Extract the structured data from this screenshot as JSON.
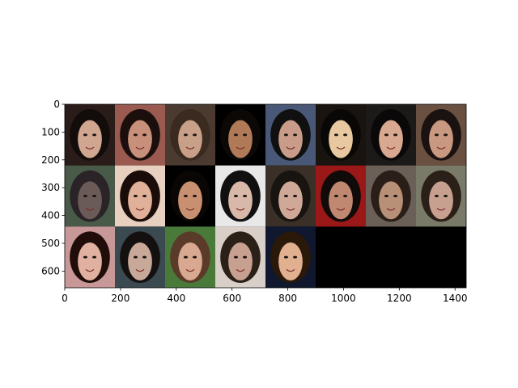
{
  "chart_data": {
    "type": "heatmap",
    "title": "",
    "xlabel": "",
    "ylabel": "",
    "xlim": [
      0,
      1440
    ],
    "ylim": [
      660,
      0
    ],
    "x_ticks": [
      0,
      200,
      400,
      600,
      800,
      1000,
      1200,
      1400
    ],
    "y_ticks": [
      0,
      100,
      200,
      300,
      400,
      500,
      600
    ],
    "grid": false,
    "tile_size": [
      180,
      220
    ],
    "rows": [
      {
        "tiles": [
          {
            "bg": "#2a1c18",
            "skin": "#d0a690",
            "hair": "#120c0a"
          },
          {
            "bg": "#9a5a50",
            "skin": "#c8907a",
            "hair": "#1a0f0c"
          },
          {
            "bg": "#4a3a30",
            "skin": "#c8a088",
            "hair": "#3a2a20"
          },
          {
            "bg": "#000000",
            "skin": "#b07a58",
            "hair": "#0c0806"
          },
          {
            "bg": "#4a5878",
            "skin": "#c89c88",
            "hair": "#101010"
          },
          {
            "bg": "#1a1410",
            "skin": "#e8c8a0",
            "hair": "#0a0806"
          },
          {
            "bg": "#1c1a18",
            "skin": "#d8a890",
            "hair": "#0a0808"
          },
          {
            "bg": "#6a5040",
            "skin": "#c89880",
            "hair": "#1a1210"
          }
        ]
      },
      {
        "tiles": [
          {
            "bg": "#4a5a48",
            "skin": "#6a5a58",
            "hair": "#2a2428"
          },
          {
            "bg": "#e8d0c0",
            "skin": "#e0b098",
            "hair": "#1a0c08"
          },
          {
            "bg": "#000000",
            "skin": "#c89070",
            "hair": "#0a0604"
          },
          {
            "bg": "#e8e8e8",
            "skin": "#d8b8a8",
            "hair": "#101010"
          },
          {
            "bg": "#3a3028",
            "skin": "#d0a898",
            "hair": "#181410"
          },
          {
            "bg": "#9a1818",
            "skin": "#c08870",
            "hair": "#100a08"
          },
          {
            "bg": "#6a6058",
            "skin": "#b89078",
            "hair": "#2a1e18"
          },
          {
            "bg": "#7a7a68",
            "skin": "#c8a090",
            "hair": "#2a2018"
          }
        ]
      },
      {
        "tiles": [
          {
            "bg": "#c89898",
            "skin": "#e0b0a0",
            "hair": "#200c08"
          },
          {
            "bg": "#3a4a50",
            "skin": "#c8a898",
            "hair": "#141010"
          },
          {
            "bg": "#4a7a3a",
            "skin": "#d8a890",
            "hair": "#5a3a28"
          },
          {
            "bg": "#d8d0c8",
            "skin": "#c8a090",
            "hair": "#2a2018"
          },
          {
            "bg": "#101830",
            "skin": "#e0b090",
            "hair": "#2a1808"
          }
        ]
      }
    ]
  }
}
